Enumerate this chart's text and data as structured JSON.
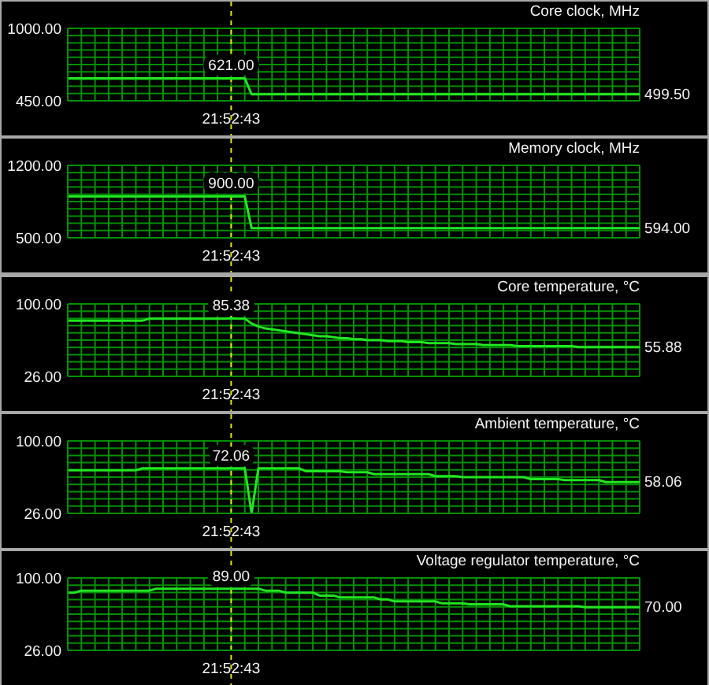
{
  "chart_data": [
    {
      "type": "line",
      "title": "Core clock, MHz",
      "color": "#22e622",
      "grid": true,
      "categories": [
        null,
        null,
        null,
        null,
        null,
        null,
        null,
        null,
        null,
        null,
        null,
        null,
        null,
        null,
        null,
        null,
        null,
        null,
        null,
        null,
        null,
        null,
        null,
        null,
        "21:52:43",
        null,
        null,
        null,
        null,
        null,
        null,
        null,
        null,
        null,
        null,
        null,
        null,
        null,
        null,
        null,
        null,
        null,
        null,
        null,
        null,
        null,
        null,
        null,
        null,
        null,
        null,
        null,
        null,
        null,
        null,
        null,
        null,
        null,
        null,
        null,
        null,
        null,
        null,
        null,
        null,
        null,
        null,
        null,
        null,
        null,
        null,
        null,
        null,
        null,
        null,
        null,
        null,
        null,
        null,
        null,
        null,
        null,
        null,
        null,
        null
      ],
      "values": [
        621,
        621,
        621,
        621,
        621,
        621,
        621,
        621,
        621,
        621,
        621,
        621,
        621,
        621,
        621,
        621,
        621,
        621,
        621,
        621,
        621,
        621,
        621,
        621,
        621,
        621,
        621,
        499.5,
        499.5,
        499.5,
        499.5,
        499.5,
        499.5,
        499.5,
        499.5,
        499.5,
        499.5,
        499.5,
        499.5,
        499.5,
        499.5,
        499.5,
        499.5,
        499.5,
        499.5,
        499.5,
        499.5,
        499.5,
        499.5,
        499.5,
        499.5,
        499.5,
        499.5,
        499.5,
        499.5,
        499.5,
        499.5,
        499.5,
        499.5,
        499.5,
        499.5,
        499.5,
        499.5,
        499.5,
        499.5,
        499.5,
        499.5,
        499.5,
        499.5,
        499.5,
        499.5,
        499.5,
        499.5,
        499.5,
        499.5,
        499.5,
        499.5,
        499.5,
        499.5,
        499.5,
        499.5,
        499.5,
        499.5,
        499.5,
        499.5
      ],
      "value_labels": [
        null,
        null,
        null,
        null,
        null,
        null,
        null,
        null,
        null,
        null,
        null,
        null,
        null,
        null,
        null,
        null,
        null,
        null,
        null,
        null,
        null,
        null,
        null,
        null,
        "621.00",
        null,
        null,
        null,
        null,
        null,
        null,
        null,
        null,
        null,
        null,
        null,
        null,
        null,
        null,
        null,
        null,
        null,
        null,
        null,
        null,
        null,
        null,
        null,
        null,
        null,
        null,
        null,
        null,
        null,
        null,
        null,
        null,
        null,
        null,
        null,
        null,
        null,
        null,
        null,
        null,
        null,
        null,
        null,
        null,
        null,
        null,
        null,
        null,
        null,
        null,
        null,
        null,
        null,
        null,
        null,
        null,
        null,
        null,
        null,
        "499.50"
      ],
      "ylim": [
        450,
        1000
      ],
      "yticks": [
        {
          "value": 450,
          "label": "450.00"
        },
        {
          "value": 505,
          "label": null
        },
        {
          "value": 560,
          "label": null
        },
        {
          "value": 615,
          "label": null
        },
        {
          "value": 670,
          "label": null
        },
        {
          "value": 725,
          "label": null
        },
        {
          "value": 780,
          "label": null
        },
        {
          "value": 835,
          "label": null
        },
        {
          "value": 890,
          "label": null
        },
        {
          "value": 945,
          "label": null
        },
        {
          "value": 1000,
          "label": "1000.00"
        }
      ],
      "ref_lines": [
        {
          "axis": "x",
          "value": "21:52:43",
          "color": "#e6e600",
          "line_style": "dashed"
        }
      ]
    },
    {
      "type": "line",
      "title": "Memory clock, MHz",
      "color": "#22e622",
      "grid": true,
      "categories": [
        null,
        null,
        null,
        null,
        null,
        null,
        null,
        null,
        null,
        null,
        null,
        null,
        null,
        null,
        null,
        null,
        null,
        null,
        null,
        null,
        null,
        null,
        null,
        null,
        "21:52:43",
        null,
        null,
        null,
        null,
        null,
        null,
        null,
        null,
        null,
        null,
        null,
        null,
        null,
        null,
        null,
        null,
        null,
        null,
        null,
        null,
        null,
        null,
        null,
        null,
        null,
        null,
        null,
        null,
        null,
        null,
        null,
        null,
        null,
        null,
        null,
        null,
        null,
        null,
        null,
        null,
        null,
        null,
        null,
        null,
        null,
        null,
        null,
        null,
        null,
        null,
        null,
        null,
        null,
        null,
        null,
        null,
        null,
        null,
        null,
        null
      ],
      "values": [
        900,
        900,
        900,
        900,
        900,
        900,
        900,
        900,
        900,
        900,
        900,
        900,
        900,
        900,
        900,
        900,
        900,
        900,
        900,
        900,
        900,
        900,
        900,
        900,
        900,
        900,
        900,
        594,
        594,
        594,
        594,
        594,
        594,
        594,
        594,
        594,
        594,
        594,
        594,
        594,
        594,
        594,
        594,
        594,
        594,
        594,
        594,
        594,
        594,
        594,
        594,
        594,
        594,
        594,
        594,
        594,
        594,
        594,
        594,
        594,
        594,
        594,
        594,
        594,
        594,
        594,
        594,
        594,
        594,
        594,
        594,
        594,
        594,
        594,
        594,
        594,
        594,
        594,
        594,
        594,
        594,
        594,
        594,
        594,
        594
      ],
      "value_labels": [
        null,
        null,
        null,
        null,
        null,
        null,
        null,
        null,
        null,
        null,
        null,
        null,
        null,
        null,
        null,
        null,
        null,
        null,
        null,
        null,
        null,
        null,
        null,
        null,
        "900.00",
        null,
        null,
        null,
        null,
        null,
        null,
        null,
        null,
        null,
        null,
        null,
        null,
        null,
        null,
        null,
        null,
        null,
        null,
        null,
        null,
        null,
        null,
        null,
        null,
        null,
        null,
        null,
        null,
        null,
        null,
        null,
        null,
        null,
        null,
        null,
        null,
        null,
        null,
        null,
        null,
        null,
        null,
        null,
        null,
        null,
        null,
        null,
        null,
        null,
        null,
        null,
        null,
        null,
        null,
        null,
        null,
        null,
        null,
        null,
        "594.00"
      ],
      "ylim": [
        500,
        1200
      ],
      "yticks": [
        {
          "value": 500,
          "label": "500.00"
        },
        {
          "value": 570,
          "label": null
        },
        {
          "value": 640,
          "label": null
        },
        {
          "value": 710,
          "label": null
        },
        {
          "value": 780,
          "label": null
        },
        {
          "value": 850,
          "label": null
        },
        {
          "value": 920,
          "label": null
        },
        {
          "value": 990,
          "label": null
        },
        {
          "value": 1060,
          "label": null
        },
        {
          "value": 1130,
          "label": null
        },
        {
          "value": 1200,
          "label": "1200.00"
        }
      ],
      "ref_lines": [
        {
          "axis": "x",
          "value": "21:52:43",
          "color": "#e6e600",
          "line_style": "dashed"
        }
      ]
    },
    {
      "type": "line",
      "title": "Core temperature, °C",
      "color": "#22e622",
      "grid": true,
      "categories": [
        null,
        null,
        null,
        null,
        null,
        null,
        null,
        null,
        null,
        null,
        null,
        null,
        null,
        null,
        null,
        null,
        null,
        null,
        null,
        null,
        null,
        null,
        null,
        null,
        "21:52:43",
        null,
        null,
        null,
        null,
        null,
        null,
        null,
        null,
        null,
        null,
        null,
        null,
        null,
        null,
        null,
        null,
        null,
        null,
        null,
        null,
        null,
        null,
        null,
        null,
        null,
        null,
        null,
        null,
        null,
        null,
        null,
        null,
        null,
        null,
        null,
        null,
        null,
        null,
        null,
        null,
        null,
        null,
        null,
        null,
        null,
        null,
        null,
        null,
        null,
        null,
        null,
        null,
        null,
        null,
        null,
        null,
        null,
        null,
        null,
        null
      ],
      "values": [
        83,
        83,
        83,
        83,
        83,
        83,
        83,
        83,
        83,
        83,
        83,
        83,
        85,
        85,
        85,
        85,
        85,
        85,
        85,
        85,
        85,
        85,
        85,
        85,
        85.38,
        85,
        85,
        80,
        77,
        75,
        74,
        73,
        72,
        71,
        70,
        69,
        68,
        67,
        67,
        66,
        65,
        65,
        64,
        64,
        63,
        63,
        63,
        62,
        62,
        62,
        61,
        61,
        61,
        60,
        60,
        60,
        60,
        59,
        59,
        59,
        59,
        58,
        58,
        58,
        58,
        58,
        57,
        57,
        57,
        57,
        57,
        57,
        57,
        57,
        57,
        56,
        56,
        56,
        56,
        56,
        56,
        56,
        56,
        56,
        55.88
      ],
      "value_labels": [
        null,
        null,
        null,
        null,
        null,
        null,
        null,
        null,
        null,
        null,
        null,
        null,
        null,
        null,
        null,
        null,
        null,
        null,
        null,
        null,
        null,
        null,
        null,
        null,
        "85.38",
        null,
        null,
        null,
        null,
        null,
        null,
        null,
        null,
        null,
        null,
        null,
        null,
        null,
        null,
        null,
        null,
        null,
        null,
        null,
        null,
        null,
        null,
        null,
        null,
        null,
        null,
        null,
        null,
        null,
        null,
        null,
        null,
        null,
        null,
        null,
        null,
        null,
        null,
        null,
        null,
        null,
        null,
        null,
        null,
        null,
        null,
        null,
        null,
        null,
        null,
        null,
        null,
        null,
        null,
        null,
        null,
        null,
        null,
        null,
        "55.88"
      ],
      "ylim": [
        26,
        100
      ],
      "yticks": [
        {
          "value": 26,
          "label": "26.00"
        },
        {
          "value": 33.4,
          "label": null
        },
        {
          "value": 40.8,
          "label": null
        },
        {
          "value": 48.2,
          "label": null
        },
        {
          "value": 55.6,
          "label": null
        },
        {
          "value": 63,
          "label": null
        },
        {
          "value": 70.4,
          "label": null
        },
        {
          "value": 77.8,
          "label": null
        },
        {
          "value": 85.2,
          "label": null
        },
        {
          "value": 92.6,
          "label": null
        },
        {
          "value": 100,
          "label": "100.00"
        }
      ],
      "ref_lines": [
        {
          "axis": "x",
          "value": "21:52:43",
          "color": "#e6e600",
          "line_style": "dashed"
        }
      ]
    },
    {
      "type": "line",
      "title": "Ambient temperature, °C",
      "color": "#22e622",
      "grid": true,
      "categories": [
        null,
        null,
        null,
        null,
        null,
        null,
        null,
        null,
        null,
        null,
        null,
        null,
        null,
        null,
        null,
        null,
        null,
        null,
        null,
        null,
        null,
        null,
        null,
        null,
        "21:52:43",
        null,
        null,
        null,
        null,
        null,
        null,
        null,
        null,
        null,
        null,
        null,
        null,
        null,
        null,
        null,
        null,
        null,
        null,
        null,
        null,
        null,
        null,
        null,
        null,
        null,
        null,
        null,
        null,
        null,
        null,
        null,
        null,
        null,
        null,
        null,
        null,
        null,
        null,
        null,
        null,
        null,
        null,
        null,
        null,
        null,
        null,
        null,
        null,
        null,
        null,
        null,
        null,
        null,
        null,
        null,
        null,
        null,
        null,
        null,
        null
      ],
      "values": [
        70,
        70,
        70,
        70,
        70,
        70,
        70,
        70,
        70,
        70,
        70,
        72,
        72,
        72,
        72,
        72,
        72,
        72,
        72,
        72,
        72,
        72,
        72,
        72,
        72.06,
        72,
        72,
        26,
        72,
        72,
        72,
        72,
        72,
        72,
        72,
        69,
        69,
        69,
        69,
        69,
        69,
        68,
        68,
        68,
        68,
        66,
        66,
        66,
        66,
        66,
        66,
        66,
        66,
        66,
        64,
        64,
        64,
        64,
        63,
        63,
        63,
        63,
        63,
        63,
        63,
        63,
        63,
        63,
        61,
        61,
        61,
        61,
        61,
        60,
        60,
        60,
        60,
        60,
        60,
        58,
        58,
        58,
        58,
        58,
        58.06
      ],
      "value_labels": [
        null,
        null,
        null,
        null,
        null,
        null,
        null,
        null,
        null,
        null,
        null,
        null,
        null,
        null,
        null,
        null,
        null,
        null,
        null,
        null,
        null,
        null,
        null,
        null,
        "72.06",
        null,
        null,
        null,
        null,
        null,
        null,
        null,
        null,
        null,
        null,
        null,
        null,
        null,
        null,
        null,
        null,
        null,
        null,
        null,
        null,
        null,
        null,
        null,
        null,
        null,
        null,
        null,
        null,
        null,
        null,
        null,
        null,
        null,
        null,
        null,
        null,
        null,
        null,
        null,
        null,
        null,
        null,
        null,
        null,
        null,
        null,
        null,
        null,
        null,
        null,
        null,
        null,
        null,
        null,
        null,
        null,
        null,
        null,
        null,
        "58.06"
      ],
      "ylim": [
        26,
        100
      ],
      "yticks": [
        {
          "value": 26,
          "label": "26.00"
        },
        {
          "value": 33.4,
          "label": null
        },
        {
          "value": 40.8,
          "label": null
        },
        {
          "value": 48.2,
          "label": null
        },
        {
          "value": 55.6,
          "label": null
        },
        {
          "value": 63,
          "label": null
        },
        {
          "value": 70.4,
          "label": null
        },
        {
          "value": 77.8,
          "label": null
        },
        {
          "value": 85.2,
          "label": null
        },
        {
          "value": 92.6,
          "label": null
        },
        {
          "value": 100,
          "label": "100.00"
        }
      ],
      "ref_lines": [
        {
          "axis": "x",
          "value": "21:52:43",
          "color": "#e6e600",
          "line_style": "dashed"
        }
      ]
    },
    {
      "type": "line",
      "title": "Voltage regulator temperature, °C",
      "color": "#22e622",
      "grid": true,
      "categories": [
        null,
        null,
        null,
        null,
        null,
        null,
        null,
        null,
        null,
        null,
        null,
        null,
        null,
        null,
        null,
        null,
        null,
        null,
        null,
        null,
        null,
        null,
        null,
        null,
        "21:52:43",
        null,
        null,
        null,
        null,
        null,
        null,
        null,
        null,
        null,
        null,
        null,
        null,
        null,
        null,
        null,
        null,
        null,
        null,
        null,
        null,
        null,
        null,
        null,
        null,
        null,
        null,
        null,
        null,
        null,
        null,
        null,
        null,
        null,
        null,
        null,
        null,
        null,
        null,
        null,
        null,
        null,
        null,
        null,
        null,
        null,
        null,
        null,
        null,
        null,
        null,
        null,
        null,
        null,
        null,
        null,
        null,
        null,
        null,
        null,
        null
      ],
      "values": [
        85,
        85,
        87,
        87,
        87,
        87,
        87,
        87,
        87,
        87,
        87,
        87,
        87,
        89,
        89,
        89,
        89,
        89,
        89,
        89,
        89,
        89,
        89,
        89,
        89,
        89,
        89,
        89,
        89,
        87,
        87,
        87,
        85,
        85,
        85,
        85,
        85,
        82,
        82,
        82,
        80,
        80,
        80,
        80,
        80,
        80,
        78,
        78,
        76,
        76,
        76,
        76,
        76,
        76,
        76,
        74,
        74,
        74,
        74,
        73,
        73,
        73,
        73,
        73,
        73,
        71,
        71,
        71,
        71,
        71,
        71,
        71,
        71,
        71,
        71,
        71,
        70,
        70,
        70,
        70,
        70,
        70,
        70,
        70,
        70
      ],
      "value_labels": [
        null,
        null,
        null,
        null,
        null,
        null,
        null,
        null,
        null,
        null,
        null,
        null,
        null,
        null,
        null,
        null,
        null,
        null,
        null,
        null,
        null,
        null,
        null,
        null,
        "89.00",
        null,
        null,
        null,
        null,
        null,
        null,
        null,
        null,
        null,
        null,
        null,
        null,
        null,
        null,
        null,
        null,
        null,
        null,
        null,
        null,
        null,
        null,
        null,
        null,
        null,
        null,
        null,
        null,
        null,
        null,
        null,
        null,
        null,
        null,
        null,
        null,
        null,
        null,
        null,
        null,
        null,
        null,
        null,
        null,
        null,
        null,
        null,
        null,
        null,
        null,
        null,
        null,
        null,
        null,
        null,
        null,
        null,
        null,
        null,
        "70.00"
      ],
      "ylim": [
        26,
        100
      ],
      "yticks": [
        {
          "value": 26,
          "label": "26.00"
        },
        {
          "value": 33.4,
          "label": null
        },
        {
          "value": 40.8,
          "label": null
        },
        {
          "value": 48.2,
          "label": null
        },
        {
          "value": 55.6,
          "label": null
        },
        {
          "value": 63,
          "label": null
        },
        {
          "value": 70.4,
          "label": null
        },
        {
          "value": 77.8,
          "label": null
        },
        {
          "value": 85.2,
          "label": null
        },
        {
          "value": 92.6,
          "label": null
        },
        {
          "value": 100,
          "label": "100.00"
        }
      ],
      "ref_lines": [
        {
          "axis": "x",
          "value": "21:52:43",
          "color": "#e6e600",
          "line_style": "dashed"
        }
      ]
    }
  ]
}
